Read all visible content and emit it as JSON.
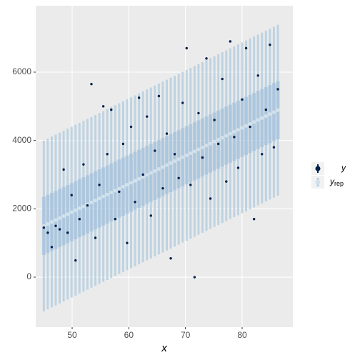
{
  "chart_data": {
    "type": "intervals",
    "x_label": "x",
    "x": [
      45.0,
      45.7,
      46.4,
      47.1,
      47.8,
      48.5,
      49.2,
      49.9,
      50.6,
      51.3,
      52.0,
      52.7,
      53.4,
      54.1,
      54.8,
      55.5,
      56.2,
      56.9,
      57.6,
      58.3,
      59.0,
      59.7,
      60.4,
      61.1,
      61.8,
      62.5,
      63.2,
      63.9,
      64.6,
      65.3,
      66.0,
      66.7,
      67.4,
      68.1,
      68.8,
      69.5,
      70.2,
      70.9,
      71.6,
      72.3,
      73.0,
      73.7,
      74.4,
      75.1,
      75.8,
      76.5,
      77.2,
      77.9,
      78.6,
      79.3,
      80.0,
      80.7,
      81.4,
      82.1,
      82.8,
      83.5,
      84.2,
      84.9,
      85.6,
      86.3
    ],
    "series": [
      {
        "name": "y",
        "color": "#011f4b",
        "values": [
          1450,
          1300,
          880,
          1500,
          1400,
          3150,
          1300,
          2400,
          490,
          1700,
          3300,
          2100,
          5650,
          1150,
          2700,
          5000,
          3600,
          4900,
          1700,
          2500,
          3900,
          1000,
          4400,
          2200,
          5250,
          3000,
          4700,
          1800,
          3700,
          5300,
          2600,
          4200,
          550,
          3600,
          2900,
          5100,
          6700,
          2700,
          0,
          4800,
          3500,
          6400,
          2300,
          4600,
          3900,
          5800,
          2800,
          6900,
          4100,
          3200,
          5200,
          6700,
          4400,
          1700,
          5900,
          3600,
          4900,
          6800,
          3800,
          5500
        ]
      },
      {
        "name": "y",
        "subscript": "rep",
        "color": "#d1e1ec",
        "interval_color": "#b3cde0",
        "values": [
          1500,
          1557,
          1615,
          1672,
          1730,
          1787,
          1844,
          1902,
          1959,
          2017,
          2074,
          2131,
          2189,
          2246,
          2304,
          2361,
          2418,
          2476,
          2533,
          2591,
          2648,
          2705,
          2763,
          2820,
          2878,
          2935,
          2992,
          3050,
          3107,
          3165,
          3222,
          3279,
          3337,
          3394,
          3452,
          3509,
          3566,
          3624,
          3681,
          3739,
          3796,
          3853,
          3911,
          3968,
          4026,
          4083,
          4140,
          4198,
          4255,
          4313,
          4370,
          4427,
          4485,
          4542,
          4600,
          4657,
          4714,
          4772,
          4829,
          4887
        ],
        "lo50": [
          650,
          707,
          765,
          822,
          880,
          937,
          994,
          1052,
          1109,
          1167,
          1224,
          1281,
          1339,
          1396,
          1454,
          1511,
          1568,
          1626,
          1683,
          1741,
          1798,
          1855,
          1913,
          1970,
          2028,
          2085,
          2142,
          2200,
          2257,
          2315,
          2372,
          2429,
          2487,
          2544,
          2602,
          2659,
          2716,
          2774,
          2831,
          2889,
          2946,
          3003,
          3061,
          3118,
          3176,
          3233,
          3290,
          3348,
          3405,
          3463,
          3520,
          3577,
          3635,
          3692,
          3750,
          3807,
          3864,
          3922,
          3979,
          4037
        ],
        "hi50": [
          2350,
          2407,
          2465,
          2522,
          2580,
          2637,
          2694,
          2752,
          2809,
          2867,
          2924,
          2981,
          3039,
          3096,
          3154,
          3211,
          3268,
          3326,
          3383,
          3441,
          3498,
          3555,
          3613,
          3670,
          3728,
          3785,
          3842,
          3900,
          3957,
          4015,
          4072,
          4129,
          4187,
          4244,
          4302,
          4359,
          4416,
          4474,
          4531,
          4589,
          4646,
          4703,
          4761,
          4818,
          4876,
          4933,
          4990,
          5048,
          5105,
          5163,
          5220,
          5277,
          5335,
          5392,
          5450,
          5507,
          5564,
          5622,
          5679,
          5737
        ],
        "lo90": [
          -1000,
          -943,
          -885,
          -828,
          -770,
          -713,
          -656,
          -598,
          -541,
          -483,
          -426,
          -369,
          -311,
          -254,
          -196,
          -139,
          -82,
          -24,
          33,
          91,
          148,
          205,
          263,
          320,
          378,
          435,
          492,
          550,
          607,
          665,
          722,
          779,
          837,
          894,
          952,
          1009,
          1066,
          1124,
          1181,
          1239,
          1296,
          1353,
          1411,
          1468,
          1526,
          1583,
          1640,
          1698,
          1755,
          1813,
          1870,
          1927,
          1985,
          2042,
          2100,
          2157,
          2214,
          2272,
          2329,
          2387
        ],
        "hi90": [
          4000,
          4057,
          4115,
          4172,
          4230,
          4287,
          4344,
          4402,
          4459,
          4517,
          4574,
          4631,
          4689,
          4746,
          4804,
          4861,
          4918,
          4976,
          5033,
          5091,
          5148,
          5205,
          5263,
          5320,
          5378,
          5435,
          5492,
          5550,
          5607,
          5665,
          5722,
          5779,
          5837,
          5894,
          5952,
          6009,
          6066,
          6124,
          6181,
          6239,
          6296,
          6353,
          6411,
          6468,
          6526,
          6583,
          6640,
          6698,
          6755,
          6813,
          6870,
          6927,
          6985,
          7042,
          7100,
          7157,
          7214,
          7272,
          7329,
          7387
        ]
      }
    ],
    "xlim": [
      43.57,
      88.95
    ],
    "xticks": [
      50,
      60,
      70,
      80
    ],
    "ylim": [
      -1463,
      7944
    ],
    "yticks": [
      0,
      2000,
      4000,
      6000
    ],
    "grid": true
  }
}
